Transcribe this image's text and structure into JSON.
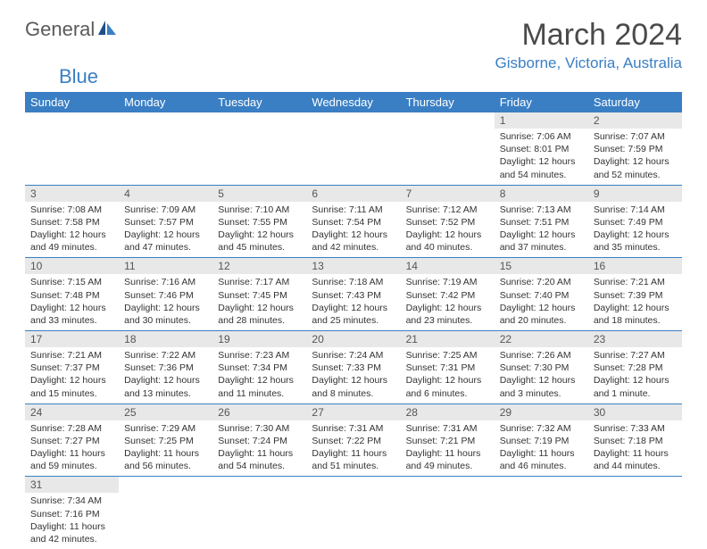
{
  "logo": {
    "part1": "General",
    "part2": "Blue"
  },
  "title": "March 2024",
  "location": "Gisborne, Victoria, Australia",
  "colors": {
    "header_bg": "#3a7fc4",
    "header_text": "#ffffff",
    "daynum_bg": "#e8e8e8",
    "border": "#3a7fc4",
    "text": "#333333",
    "logo_gray": "#5a5a5a",
    "logo_blue": "#3a7fc4"
  },
  "typography": {
    "title_fontsize": 34,
    "location_fontsize": 17,
    "dayheader_fontsize": 13,
    "daynum_fontsize": 12,
    "content_fontsize": 10.5
  },
  "layout": {
    "columns": 7,
    "rows": 6
  },
  "day_headers": [
    "Sunday",
    "Monday",
    "Tuesday",
    "Wednesday",
    "Thursday",
    "Friday",
    "Saturday"
  ],
  "weeks": [
    [
      null,
      null,
      null,
      null,
      null,
      {
        "day": "1",
        "sunrise": "Sunrise: 7:06 AM",
        "sunset": "Sunset: 8:01 PM",
        "daylight": "Daylight: 12 hours and 54 minutes."
      },
      {
        "day": "2",
        "sunrise": "Sunrise: 7:07 AM",
        "sunset": "Sunset: 7:59 PM",
        "daylight": "Daylight: 12 hours and 52 minutes."
      }
    ],
    [
      {
        "day": "3",
        "sunrise": "Sunrise: 7:08 AM",
        "sunset": "Sunset: 7:58 PM",
        "daylight": "Daylight: 12 hours and 49 minutes."
      },
      {
        "day": "4",
        "sunrise": "Sunrise: 7:09 AM",
        "sunset": "Sunset: 7:57 PM",
        "daylight": "Daylight: 12 hours and 47 minutes."
      },
      {
        "day": "5",
        "sunrise": "Sunrise: 7:10 AM",
        "sunset": "Sunset: 7:55 PM",
        "daylight": "Daylight: 12 hours and 45 minutes."
      },
      {
        "day": "6",
        "sunrise": "Sunrise: 7:11 AM",
        "sunset": "Sunset: 7:54 PM",
        "daylight": "Daylight: 12 hours and 42 minutes."
      },
      {
        "day": "7",
        "sunrise": "Sunrise: 7:12 AM",
        "sunset": "Sunset: 7:52 PM",
        "daylight": "Daylight: 12 hours and 40 minutes."
      },
      {
        "day": "8",
        "sunrise": "Sunrise: 7:13 AM",
        "sunset": "Sunset: 7:51 PM",
        "daylight": "Daylight: 12 hours and 37 minutes."
      },
      {
        "day": "9",
        "sunrise": "Sunrise: 7:14 AM",
        "sunset": "Sunset: 7:49 PM",
        "daylight": "Daylight: 12 hours and 35 minutes."
      }
    ],
    [
      {
        "day": "10",
        "sunrise": "Sunrise: 7:15 AM",
        "sunset": "Sunset: 7:48 PM",
        "daylight": "Daylight: 12 hours and 33 minutes."
      },
      {
        "day": "11",
        "sunrise": "Sunrise: 7:16 AM",
        "sunset": "Sunset: 7:46 PM",
        "daylight": "Daylight: 12 hours and 30 minutes."
      },
      {
        "day": "12",
        "sunrise": "Sunrise: 7:17 AM",
        "sunset": "Sunset: 7:45 PM",
        "daylight": "Daylight: 12 hours and 28 minutes."
      },
      {
        "day": "13",
        "sunrise": "Sunrise: 7:18 AM",
        "sunset": "Sunset: 7:43 PM",
        "daylight": "Daylight: 12 hours and 25 minutes."
      },
      {
        "day": "14",
        "sunrise": "Sunrise: 7:19 AM",
        "sunset": "Sunset: 7:42 PM",
        "daylight": "Daylight: 12 hours and 23 minutes."
      },
      {
        "day": "15",
        "sunrise": "Sunrise: 7:20 AM",
        "sunset": "Sunset: 7:40 PM",
        "daylight": "Daylight: 12 hours and 20 minutes."
      },
      {
        "day": "16",
        "sunrise": "Sunrise: 7:21 AM",
        "sunset": "Sunset: 7:39 PM",
        "daylight": "Daylight: 12 hours and 18 minutes."
      }
    ],
    [
      {
        "day": "17",
        "sunrise": "Sunrise: 7:21 AM",
        "sunset": "Sunset: 7:37 PM",
        "daylight": "Daylight: 12 hours and 15 minutes."
      },
      {
        "day": "18",
        "sunrise": "Sunrise: 7:22 AM",
        "sunset": "Sunset: 7:36 PM",
        "daylight": "Daylight: 12 hours and 13 minutes."
      },
      {
        "day": "19",
        "sunrise": "Sunrise: 7:23 AM",
        "sunset": "Sunset: 7:34 PM",
        "daylight": "Daylight: 12 hours and 11 minutes."
      },
      {
        "day": "20",
        "sunrise": "Sunrise: 7:24 AM",
        "sunset": "Sunset: 7:33 PM",
        "daylight": "Daylight: 12 hours and 8 minutes."
      },
      {
        "day": "21",
        "sunrise": "Sunrise: 7:25 AM",
        "sunset": "Sunset: 7:31 PM",
        "daylight": "Daylight: 12 hours and 6 minutes."
      },
      {
        "day": "22",
        "sunrise": "Sunrise: 7:26 AM",
        "sunset": "Sunset: 7:30 PM",
        "daylight": "Daylight: 12 hours and 3 minutes."
      },
      {
        "day": "23",
        "sunrise": "Sunrise: 7:27 AM",
        "sunset": "Sunset: 7:28 PM",
        "daylight": "Daylight: 12 hours and 1 minute."
      }
    ],
    [
      {
        "day": "24",
        "sunrise": "Sunrise: 7:28 AM",
        "sunset": "Sunset: 7:27 PM",
        "daylight": "Daylight: 11 hours and 59 minutes."
      },
      {
        "day": "25",
        "sunrise": "Sunrise: 7:29 AM",
        "sunset": "Sunset: 7:25 PM",
        "daylight": "Daylight: 11 hours and 56 minutes."
      },
      {
        "day": "26",
        "sunrise": "Sunrise: 7:30 AM",
        "sunset": "Sunset: 7:24 PM",
        "daylight": "Daylight: 11 hours and 54 minutes."
      },
      {
        "day": "27",
        "sunrise": "Sunrise: 7:31 AM",
        "sunset": "Sunset: 7:22 PM",
        "daylight": "Daylight: 11 hours and 51 minutes."
      },
      {
        "day": "28",
        "sunrise": "Sunrise: 7:31 AM",
        "sunset": "Sunset: 7:21 PM",
        "daylight": "Daylight: 11 hours and 49 minutes."
      },
      {
        "day": "29",
        "sunrise": "Sunrise: 7:32 AM",
        "sunset": "Sunset: 7:19 PM",
        "daylight": "Daylight: 11 hours and 46 minutes."
      },
      {
        "day": "30",
        "sunrise": "Sunrise: 7:33 AM",
        "sunset": "Sunset: 7:18 PM",
        "daylight": "Daylight: 11 hours and 44 minutes."
      }
    ],
    [
      {
        "day": "31",
        "sunrise": "Sunrise: 7:34 AM",
        "sunset": "Sunset: 7:16 PM",
        "daylight": "Daylight: 11 hours and 42 minutes."
      },
      null,
      null,
      null,
      null,
      null,
      null
    ]
  ]
}
